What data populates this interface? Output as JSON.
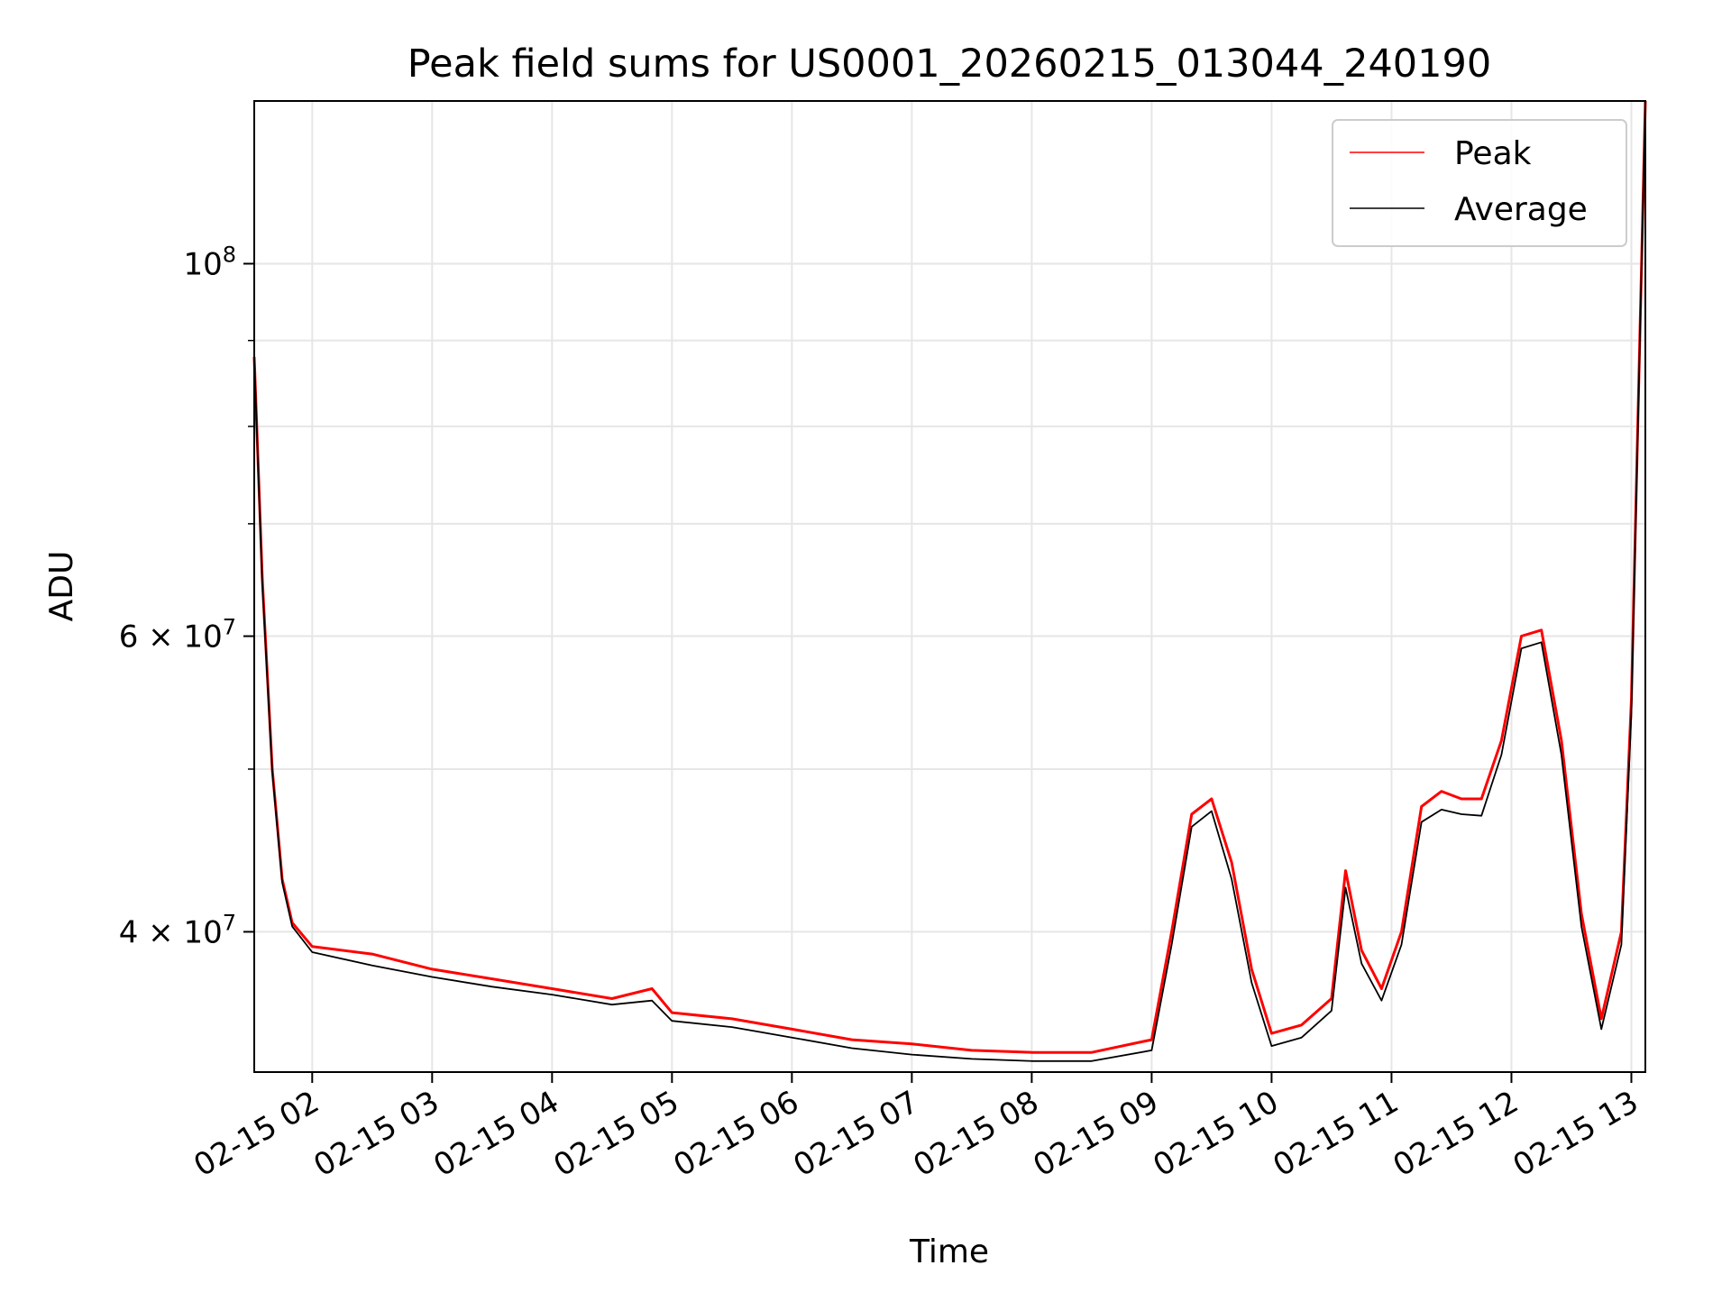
{
  "chart_data": {
    "type": "line",
    "title": "Peak field sums for US0001_20260215_013044_240190",
    "xlabel": "Time",
    "ylabel": "ADU",
    "x_ticks": [
      "02-15 02",
      "02-15 03",
      "02-15 04",
      "02-15 05",
      "02-15 06",
      "02-15 07",
      "02-15 08",
      "02-15 09",
      "02-15 10",
      "02-15 11",
      "02-15 12",
      "02-15 13"
    ],
    "x_range": [
      "2026-02-15 01:31",
      "2026-02-15 13:07"
    ],
    "y_scale": "log",
    "y_range": [
      33000000,
      125000000
    ],
    "y_ticks": [
      {
        "value": 100000000,
        "base": "10",
        "exp": "8"
      },
      {
        "value": 60000000,
        "base": "6 × 10",
        "exp": "7"
      },
      {
        "value": 40000000,
        "base": "4 × 10",
        "exp": "7"
      }
    ],
    "y_minor_ticks": [
      50000000,
      70000000,
      80000000,
      90000000
    ],
    "grid": true,
    "legend_position": "top-right",
    "series": [
      {
        "name": "Peak",
        "color": "#ff0000",
        "x": [
          "2026-02-15 01:31",
          "2026-02-15 01:35",
          "2026-02-15 01:40",
          "2026-02-15 01:45",
          "2026-02-15 01:50",
          "2026-02-15 02:00",
          "2026-02-15 02:30",
          "2026-02-15 03:00",
          "2026-02-15 03:30",
          "2026-02-15 04:00",
          "2026-02-15 04:30",
          "2026-02-15 04:50",
          "2026-02-15 05:00",
          "2026-02-15 05:30",
          "2026-02-15 06:00",
          "2026-02-15 06:30",
          "2026-02-15 07:00",
          "2026-02-15 07:30",
          "2026-02-15 08:00",
          "2026-02-15 08:30",
          "2026-02-15 09:00",
          "2026-02-15 09:10",
          "2026-02-15 09:20",
          "2026-02-15 09:30",
          "2026-02-15 09:40",
          "2026-02-15 09:50",
          "2026-02-15 10:00",
          "2026-02-15 10:15",
          "2026-02-15 10:30",
          "2026-02-15 10:37",
          "2026-02-15 10:45",
          "2026-02-15 10:55",
          "2026-02-15 11:05",
          "2026-02-15 11:15",
          "2026-02-15 11:25",
          "2026-02-15 11:35",
          "2026-02-15 11:45",
          "2026-02-15 11:55",
          "2026-02-15 12:05",
          "2026-02-15 12:15",
          "2026-02-15 12:25",
          "2026-02-15 12:35",
          "2026-02-15 12:45",
          "2026-02-15 12:55",
          "2026-02-15 13:00",
          "2026-02-15 13:07"
        ],
        "y": [
          88000000,
          65000000,
          50000000,
          43000000,
          40500000,
          39200000,
          38800000,
          38000000,
          37500000,
          37000000,
          36500000,
          37000000,
          35800000,
          35500000,
          35000000,
          34500000,
          34300000,
          34000000,
          33900000,
          33900000,
          34500000,
          40000000,
          47000000,
          48000000,
          44000000,
          38000000,
          34800000,
          35200000,
          36500000,
          43500000,
          39000000,
          37000000,
          40000000,
          47500000,
          48500000,
          48000000,
          48000000,
          52000000,
          60000000,
          60500000,
          52000000,
          41000000,
          35500000,
          40000000,
          55000000,
          125000000
        ]
      },
      {
        "name": "Average",
        "color": "#000000",
        "x": [
          "2026-02-15 01:31",
          "2026-02-15 01:35",
          "2026-02-15 01:40",
          "2026-02-15 01:45",
          "2026-02-15 01:50",
          "2026-02-15 02:00",
          "2026-02-15 02:30",
          "2026-02-15 03:00",
          "2026-02-15 03:30",
          "2026-02-15 04:00",
          "2026-02-15 04:30",
          "2026-02-15 04:50",
          "2026-02-15 05:00",
          "2026-02-15 05:30",
          "2026-02-15 06:00",
          "2026-02-15 06:30",
          "2026-02-15 07:00",
          "2026-02-15 07:30",
          "2026-02-15 08:00",
          "2026-02-15 08:30",
          "2026-02-15 09:00",
          "2026-02-15 09:10",
          "2026-02-15 09:20",
          "2026-02-15 09:30",
          "2026-02-15 09:40",
          "2026-02-15 09:50",
          "2026-02-15 10:00",
          "2026-02-15 10:15",
          "2026-02-15 10:30",
          "2026-02-15 10:37",
          "2026-02-15 10:45",
          "2026-02-15 10:55",
          "2026-02-15 11:05",
          "2026-02-15 11:15",
          "2026-02-15 11:25",
          "2026-02-15 11:35",
          "2026-02-15 11:45",
          "2026-02-15 11:55",
          "2026-02-15 12:05",
          "2026-02-15 12:15",
          "2026-02-15 12:25",
          "2026-02-15 12:35",
          "2026-02-15 12:45",
          "2026-02-15 12:55",
          "2026-02-15 13:00",
          "2026-02-15 13:07"
        ],
        "y": [
          88000000,
          64500000,
          49800000,
          42800000,
          40300000,
          38900000,
          38200000,
          37600000,
          37100000,
          36700000,
          36200000,
          36400000,
          35400000,
          35100000,
          34600000,
          34100000,
          33800000,
          33600000,
          33500000,
          33500000,
          34000000,
          39300000,
          46200000,
          47200000,
          43000000,
          37300000,
          34200000,
          34600000,
          35900000,
          42500000,
          38300000,
          36400000,
          39300000,
          46500000,
          47300000,
          47000000,
          46900000,
          51000000,
          59000000,
          59500000,
          51000000,
          40300000,
          35000000,
          39300000,
          54000000,
          125000000
        ]
      }
    ]
  }
}
